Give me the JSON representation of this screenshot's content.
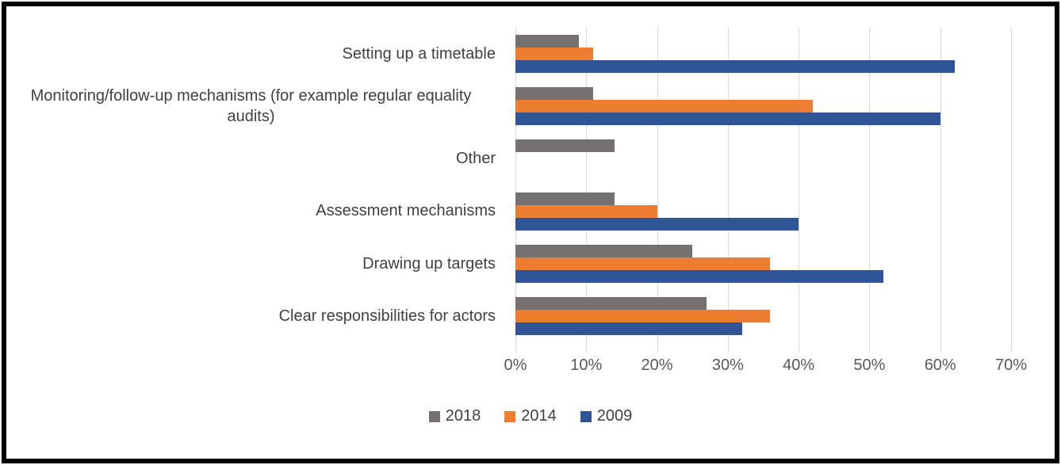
{
  "chart_data": {
    "type": "bar",
    "orientation": "horizontal",
    "title": "",
    "categories": [
      "Setting up a timetable",
      "Monitoring/follow-up mechanisms (for example regular equality audits)",
      "Other",
      "Assessment mechanisms",
      "Drawing up targets",
      "Clear responsibilities for actors"
    ],
    "series": [
      {
        "name": "2018",
        "color": "#757171",
        "values": [
          9,
          11,
          14,
          14,
          25,
          27
        ]
      },
      {
        "name": "2014",
        "color": "#ED7D31",
        "values": [
          11,
          42,
          0,
          20,
          36,
          36
        ]
      },
      {
        "name": "2009",
        "color": "#2F5597",
        "values": [
          62,
          60,
          0,
          40,
          52,
          32
        ]
      }
    ],
    "x_axis": {
      "min": 0,
      "max": 70,
      "unit": "%",
      "ticks": [
        "0%",
        "10%",
        "20%",
        "30%",
        "40%",
        "50%",
        "60%",
        "70%"
      ]
    },
    "y_axis": {
      "label": ""
    },
    "grid": true,
    "legend_position": "bottom",
    "legend": [
      "2018",
      "2014",
      "2009"
    ]
  },
  "colors": {
    "background": "#FFFFFF",
    "border": "#000000",
    "gridline": "#D9D9D9",
    "axis_text": "#595959",
    "category_text": "#404040",
    "legend_text": "#404040"
  }
}
